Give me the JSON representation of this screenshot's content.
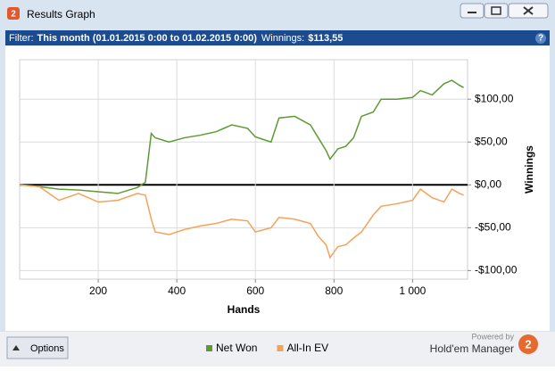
{
  "window": {
    "title": "Results Graph",
    "icon": "2"
  },
  "filter": {
    "label": "Filter:",
    "range": "This month (01.01.2015 0:00 to 01.02.2015 0:00)",
    "winnings_label": "Winnings:",
    "winnings": "$113,55"
  },
  "help": "?",
  "chart_data": {
    "type": "line",
    "x_label": "Hands",
    "y_label": "Winnings",
    "x": [
      0,
      50,
      100,
      150,
      200,
      250,
      300,
      320,
      335,
      345,
      380,
      420,
      460,
      500,
      540,
      580,
      600,
      640,
      660,
      700,
      740,
      760,
      780,
      790,
      810,
      830,
      850,
      870,
      900,
      920,
      960,
      1000,
      1020,
      1050,
      1080,
      1100,
      1120,
      1130
    ],
    "series": [
      {
        "name": "Net Won",
        "color": "#5e9a34",
        "values": [
          0,
          -2,
          -5,
          -6,
          -8,
          -10,
          -3,
          3,
          60,
          55,
          50,
          55,
          58,
          62,
          70,
          66,
          56,
          50,
          78,
          80,
          70,
          55,
          40,
          30,
          42,
          45,
          55,
          80,
          85,
          100,
          100,
          102,
          110,
          105,
          118,
          122,
          116,
          113.55
        ]
      },
      {
        "name": "All-In EV",
        "color": "#f5a259",
        "values": [
          0,
          -2,
          -18,
          -10,
          -20,
          -18,
          -10,
          -12,
          -40,
          -55,
          -58,
          -52,
          -48,
          -45,
          -40,
          -42,
          -55,
          -50,
          -38,
          -40,
          -45,
          -60,
          -70,
          -85,
          -72,
          -70,
          -62,
          -55,
          -35,
          -25,
          -22,
          -18,
          -5,
          -15,
          -20,
          -5,
          -10,
          -12
        ]
      }
    ],
    "xlim": [
      0,
      1140
    ],
    "ylim": [
      -110,
      146
    ],
    "xticks": [
      200,
      400,
      600,
      800,
      {
        "value": 1000,
        "label": "1 000"
      }
    ],
    "yticks": [
      {
        "value": 100,
        "label": "$100,00"
      },
      {
        "value": 50,
        "label": "$50,00"
      },
      {
        "value": 0,
        "label": "$0,00"
      },
      {
        "value": -50,
        "label": "-$50,00"
      },
      {
        "value": -100,
        "label": "-$100,00"
      }
    ],
    "grid": true,
    "legend": "bottom"
  },
  "footer": {
    "options": "Options",
    "powered_by": "Powered by",
    "brand": "Hold'em Manager",
    "logo": "2"
  }
}
